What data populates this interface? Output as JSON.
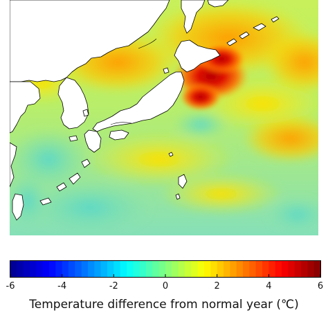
{
  "colorbar": {
    "min": -6,
    "max": 6,
    "tick_labels": [
      "-6",
      "-4",
      "-2",
      "0",
      "2",
      "4",
      "6"
    ],
    "label": "Temperature difference from normal year (℃)",
    "colors": [
      "#00008f",
      "#0000ff",
      "#0080ff",
      "#00ffff",
      "#80ff80",
      "#ffff00",
      "#ff8000",
      "#ff0000",
      "#800000"
    ]
  },
  "map": {
    "variable": "sea surface temperature anomaly",
    "land_color": "#ffffff",
    "coastline_color": "#000000",
    "regions_shown": [
      "Japan",
      "Korean Peninsula",
      "Taiwan",
      "Sakhalin",
      "Kuril Islands",
      "Sea of Japan",
      "Northwest Pacific"
    ],
    "hotspot": "off northeastern Honshu and east of Hokkaido, about +5 to +6",
    "typical_open_ocean": "about 0 to +1"
  }
}
